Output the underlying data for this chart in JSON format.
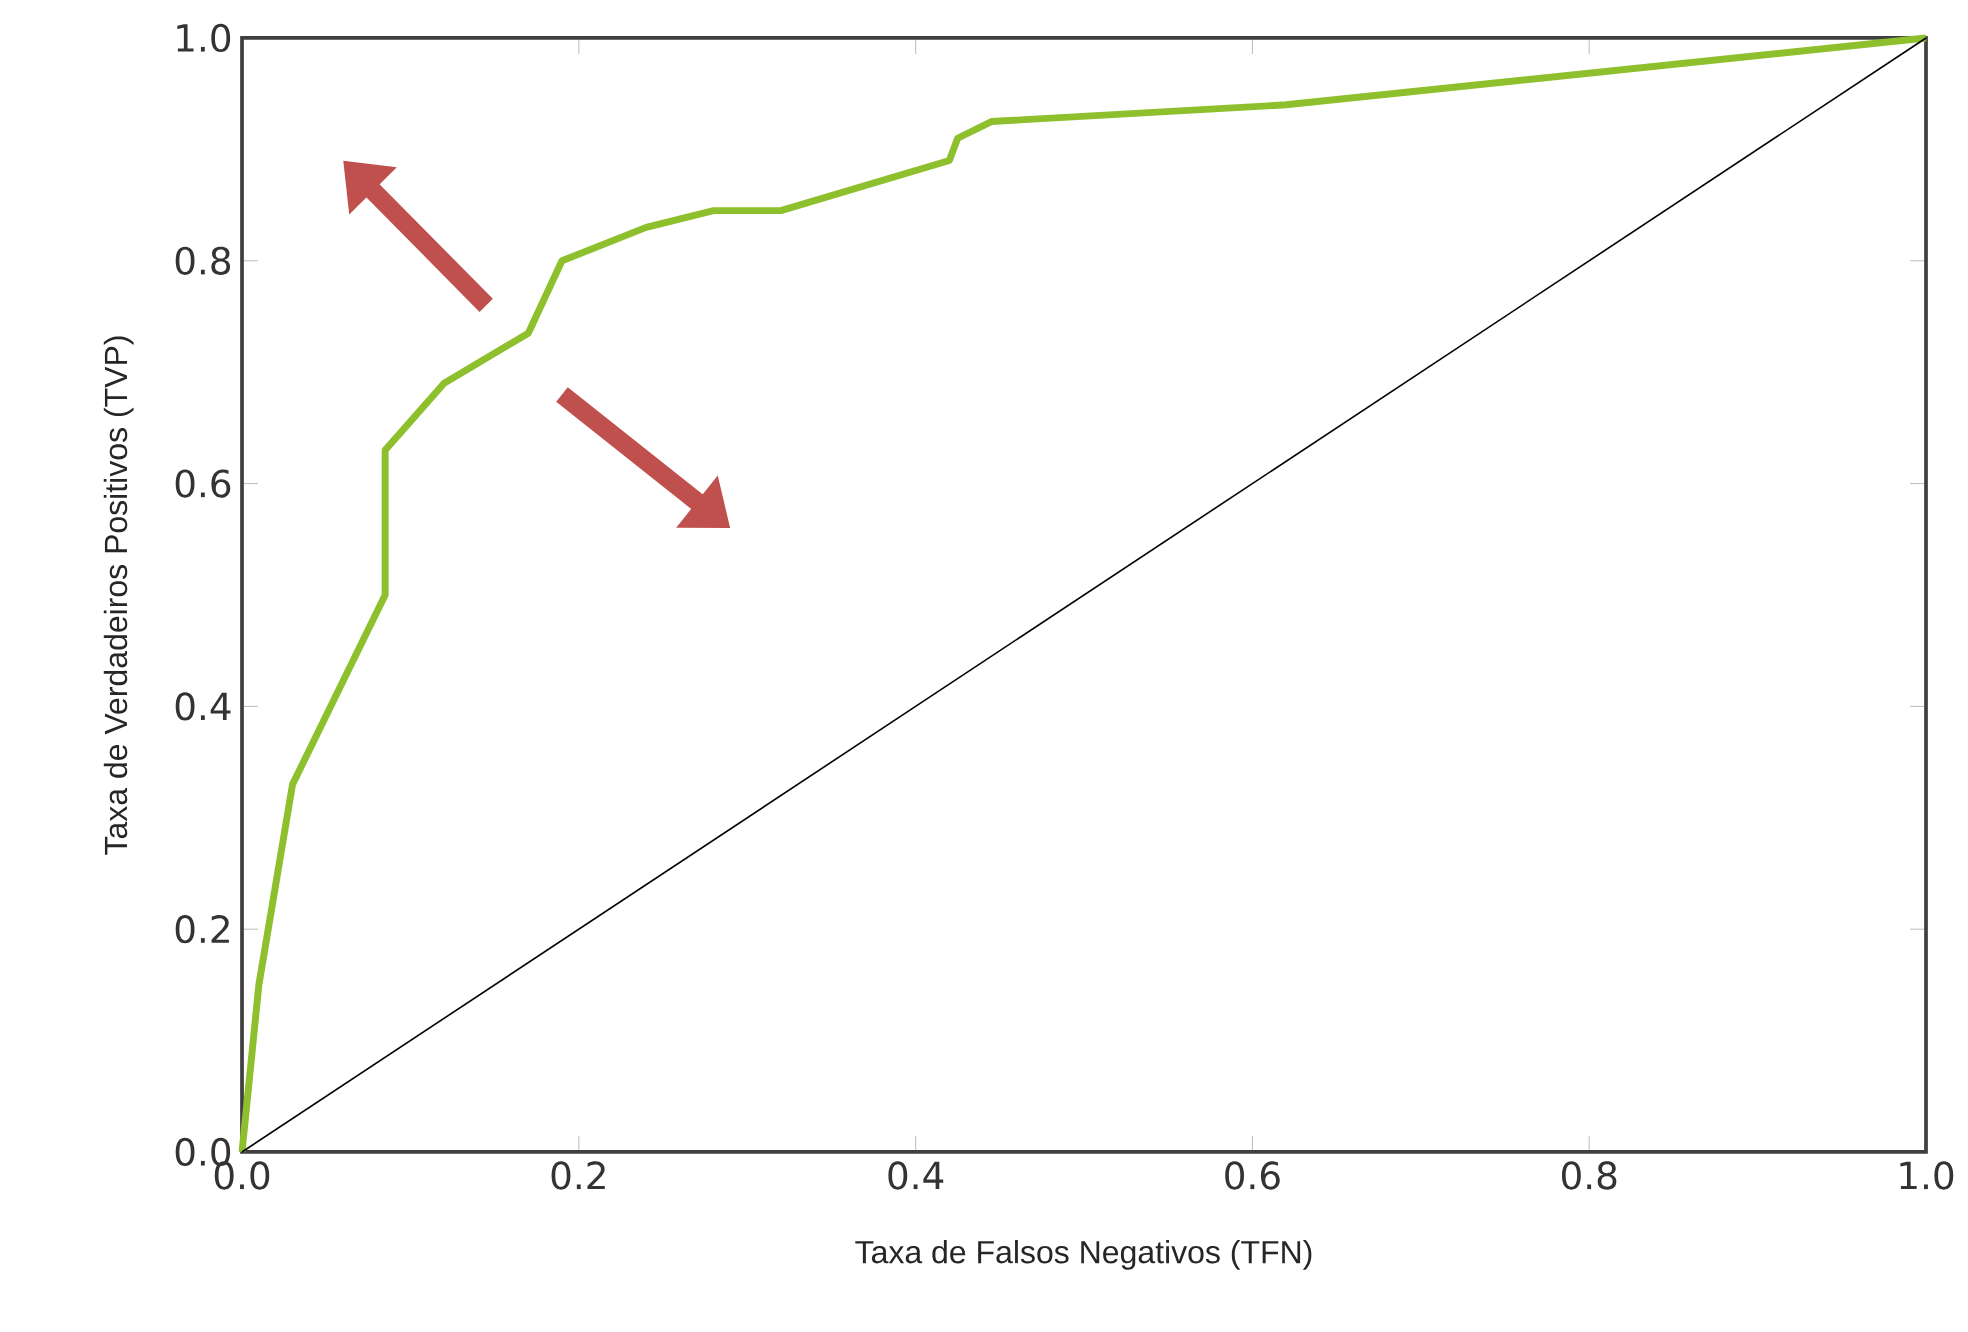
{
  "chart_data": {
    "type": "line",
    "xlabel": "Taxa de Falsos Negativos (TFN)",
    "ylabel": "Taxa de Verdadeiros Positivos (TVP)",
    "series": [
      {
        "color": "#8dc02c",
        "x": [
          0,
          0.01,
          0.03,
          0.085,
          0.085,
          0.12,
          0.17,
          0.19,
          0.24,
          0.28,
          0.32,
          0.42,
          0.425,
          0.445,
          0.62,
          1
        ],
        "values": [
          0,
          0.15,
          0.33,
          0.5,
          0.63,
          0.69,
          0.735,
          0.8,
          0.83,
          0.845,
          0.845,
          0.89,
          0.91,
          0.925,
          0.94,
          1
        ]
      },
      {
        "color": "#000000",
        "x": [
          0,
          1
        ],
        "values": [
          0,
          1
        ]
      }
    ],
    "xlim": [
      0,
      1
    ],
    "ylim": [
      0,
      1
    ],
    "xticks": [
      {
        "value": 0,
        "label": "0.0"
      },
      0.2,
      0.4,
      0.6,
      0.8,
      {
        "value": 1,
        "label": "1.0"
      }
    ],
    "yticks": [
      {
        "value": 0,
        "label": "0.0"
      },
      0.2,
      0.4,
      0.6,
      0.8,
      {
        "value": 1,
        "label": "1.0"
      }
    ],
    "grid": false,
    "marker": "none",
    "line_style": "solid"
  }
}
